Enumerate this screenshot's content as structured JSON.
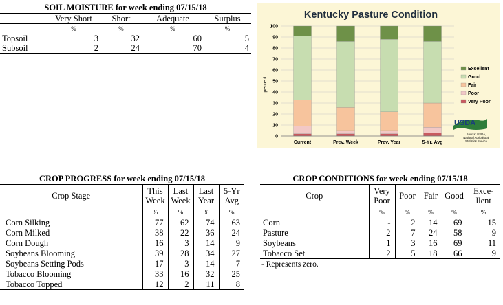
{
  "soil_moisture": {
    "title": "SOIL MOISTURE for week ending 07/15/18",
    "columns": [
      "Very Short",
      "Short",
      "Adequate",
      "Surplus"
    ],
    "unit_row": [
      "%",
      "%",
      "%",
      "%"
    ],
    "rows": [
      {
        "label": "Topsoil",
        "values": [
          "3",
          "32",
          "60",
          "5"
        ]
      },
      {
        "label": "Subsoil",
        "values": [
          "2",
          "24",
          "70",
          "4"
        ]
      }
    ]
  },
  "chart_data": {
    "type": "bar",
    "title": "Kentucky Pasture Condition",
    "ylabel": "percent",
    "xlabel": "",
    "ylim": [
      0,
      100
    ],
    "yticks": [
      0,
      10,
      20,
      30,
      40,
      50,
      60,
      70,
      80,
      90,
      100
    ],
    "stacked": true,
    "grid": true,
    "legend_position": "right",
    "categories": [
      "Current",
      "Prev. Week",
      "Prev. Year",
      "5-Yr. Avg"
    ],
    "series": [
      {
        "name": "Very Poor",
        "color": "#c85a5f",
        "values": [
          2,
          2,
          2,
          3
        ]
      },
      {
        "name": "Poor",
        "color": "#f2c8c6",
        "values": [
          7,
          3,
          3,
          5
        ]
      },
      {
        "name": "Fair",
        "color": "#f7c49d",
        "values": [
          24,
          21,
          17,
          22
        ]
      },
      {
        "name": "Good",
        "color": "#c7ddb0",
        "values": [
          58,
          60,
          66,
          56
        ]
      },
      {
        "name": "Excellent",
        "color": "#6e9148",
        "values": [
          9,
          14,
          12,
          14
        ]
      }
    ],
    "source_logo": "USDA",
    "source_text": [
      "Source: USDA,",
      "National Agricultural",
      "Statistics Service"
    ]
  },
  "crop_progress": {
    "title": "CROP PROGRESS for week ending 07/15/18",
    "stage_header": "Crop Stage",
    "columns": [
      {
        "line1": "This",
        "line2": "Week"
      },
      {
        "line1": "Last",
        "line2": "Week"
      },
      {
        "line1": "Last",
        "line2": "Year"
      },
      {
        "line1": "5-Yr",
        "line2": "Avg"
      }
    ],
    "unit_row": [
      "%",
      "%",
      "%",
      "%"
    ],
    "rows": [
      {
        "label": "Corn Silking",
        "values": [
          "77",
          "62",
          "74",
          "63"
        ]
      },
      {
        "label": "Corn Milked",
        "values": [
          "38",
          "22",
          "36",
          "24"
        ]
      },
      {
        "label": "Corn Dough",
        "values": [
          "16",
          "3",
          "14",
          "9"
        ]
      },
      {
        "label": "Soybeans Blooming",
        "values": [
          "39",
          "28",
          "34",
          "27"
        ]
      },
      {
        "label": "Soybeans Setting Pods",
        "values": [
          "17",
          "3",
          "14",
          "7"
        ]
      },
      {
        "label": "Tobacco Blooming",
        "values": [
          "33",
          "16",
          "32",
          "25"
        ]
      },
      {
        "label": "Tobacco Topped",
        "values": [
          "12",
          "2",
          "11",
          "8"
        ]
      }
    ]
  },
  "crop_conditions": {
    "title": "CROP CONDITIONS for week ending 07/15/18",
    "crop_header": "Crop",
    "columns": [
      {
        "line1": "Very",
        "line2": "Poor"
      },
      {
        "line1": "Poor",
        "line2": ""
      },
      {
        "line1": "Fair",
        "line2": ""
      },
      {
        "line1": "Good",
        "line2": ""
      },
      {
        "line1": "Exce-",
        "line2": "llent"
      }
    ],
    "unit_row": [
      "%",
      "%",
      "%",
      "%",
      "%"
    ],
    "rows": [
      {
        "label": "Corn",
        "values": [
          "-",
          "2",
          "14",
          "69",
          "15"
        ]
      },
      {
        "label": "Pasture",
        "values": [
          "2",
          "7",
          "24",
          "58",
          "9"
        ]
      },
      {
        "label": "Soybeans",
        "values": [
          "1",
          "3",
          "16",
          "69",
          "11"
        ]
      },
      {
        "label": "Tobacco Set",
        "values": [
          "2",
          "5",
          "18",
          "66",
          "9"
        ]
      }
    ],
    "note": "- Represents zero."
  }
}
